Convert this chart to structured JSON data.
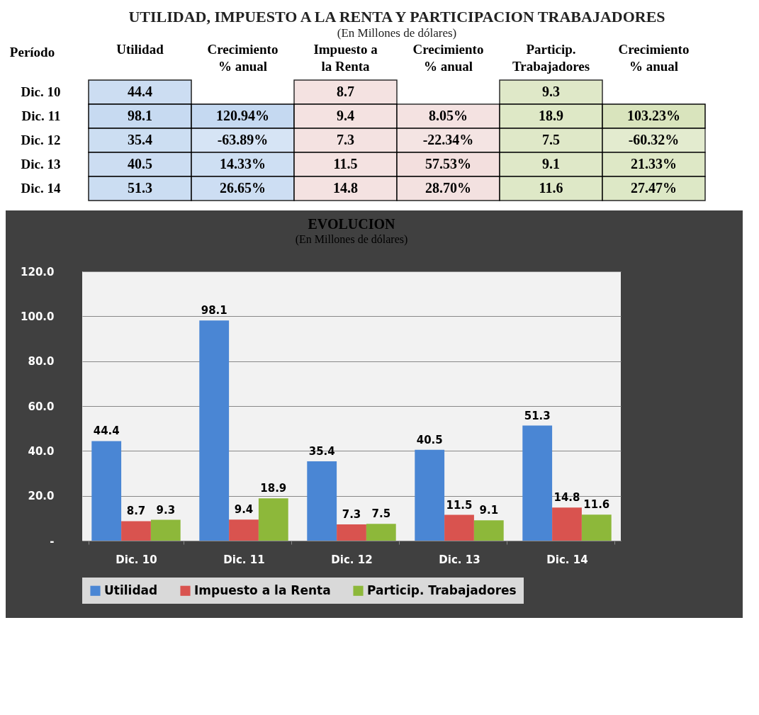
{
  "chart_data": [
    {
      "type": "heatmap",
      "title": "UTILIDAD, IMPUESTO A LA RENTA Y PARTICIPACION TRABAJADORES",
      "subtitle": "(En Millones de dólares)",
      "ylabel": "Período",
      "categories": [
        "Utilidad",
        "Crecimiento % anual",
        "Impuesto a la Renta",
        "Crecimiento % anual",
        "Particip. Trabajadores",
        "Crecimiento % anual"
      ],
      "y_categories": [
        "Dic. 10",
        "Dic. 11",
        "Dic. 12",
        "Dic. 13",
        "Dic. 14"
      ],
      "cells": [
        [
          44.4,
          null,
          8.7,
          null,
          9.3,
          null
        ],
        [
          98.1,
          120.94,
          9.4,
          8.05,
          18.9,
          103.23
        ],
        [
          35.4,
          -63.89,
          7.3,
          -22.34,
          7.5,
          -60.32
        ],
        [
          40.5,
          14.33,
          11.5,
          57.53,
          9.1,
          21.33
        ],
        [
          51.3,
          26.65,
          14.8,
          28.7,
          11.6,
          27.47
        ]
      ],
      "cell_labels": [
        [
          "44.4",
          null,
          "8.7",
          null,
          "9.3",
          null
        ],
        [
          "98.1",
          "120.94%",
          "9.4",
          "8.05%",
          "18.9",
          "103.23%"
        ],
        [
          "35.4",
          "-63.89%",
          "7.3",
          "-22.34%",
          "7.5",
          "-60.32%"
        ],
        [
          "40.5",
          "14.33%",
          "11.5",
          "57.53%",
          "9.1",
          "21.33%"
        ],
        [
          "51.3",
          "26.65%",
          "14.8",
          "28.70%",
          "11.6",
          "27.47%"
        ]
      ]
    },
    {
      "type": "bar",
      "title": "EVOLUCION",
      "subtitle": "(En Millones de dólares)",
      "categories": [
        "Dic. 10",
        "Dic. 11",
        "Dic. 12",
        "Dic. 13",
        "Dic. 14"
      ],
      "series": [
        {
          "name": "Utilidad",
          "color": "#4a86d4",
          "values": [
            44.4,
            98.1,
            35.4,
            40.5,
            51.3
          ]
        },
        {
          "name": "Impuesto a la Renta",
          "color": "#d9534f",
          "values": [
            8.7,
            9.4,
            7.3,
            11.5,
            14.8
          ]
        },
        {
          "name": "Particip. Trabajadores",
          "color": "#8db83a",
          "values": [
            9.3,
            18.9,
            7.5,
            9.1,
            11.6
          ]
        }
      ],
      "ylim": [
        0,
        120
      ],
      "yticks": [
        {
          "value": 0,
          "label": "-"
        },
        {
          "value": 20,
          "label": "20.0"
        },
        {
          "value": 40,
          "label": "40.0"
        },
        {
          "value": 60,
          "label": "60.0"
        },
        {
          "value": 80,
          "label": "80.0"
        },
        {
          "value": 100,
          "label": "100.0"
        },
        {
          "value": 120,
          "label": "120.0"
        }
      ],
      "grid": "y",
      "legend": "bottom",
      "data_labels": true
    }
  ]
}
